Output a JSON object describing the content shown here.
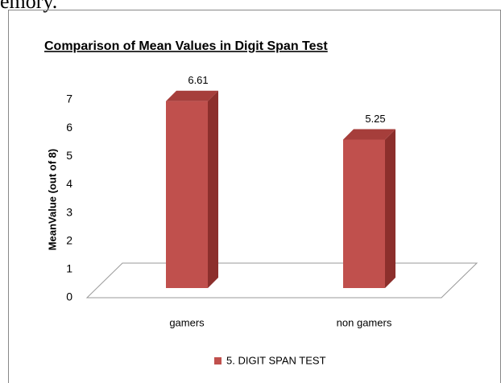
{
  "page_text": "emory.",
  "chart_data": {
    "type": "bar",
    "title": "Comparison of Mean Values in Digit Span Test",
    "y_label": "MeanValue (out of 8)",
    "categories": [
      "gamers",
      "non gamers"
    ],
    "series": [
      {
        "name": "5. DIGIT SPAN TEST",
        "color": "#c0504d",
        "values": [
          6.61,
          5.25
        ]
      }
    ],
    "ylim": [
      0,
      7
    ],
    "yticks": [
      0,
      1,
      2,
      3,
      4,
      5,
      6,
      7
    ],
    "grid": false,
    "legend": "bottom"
  }
}
